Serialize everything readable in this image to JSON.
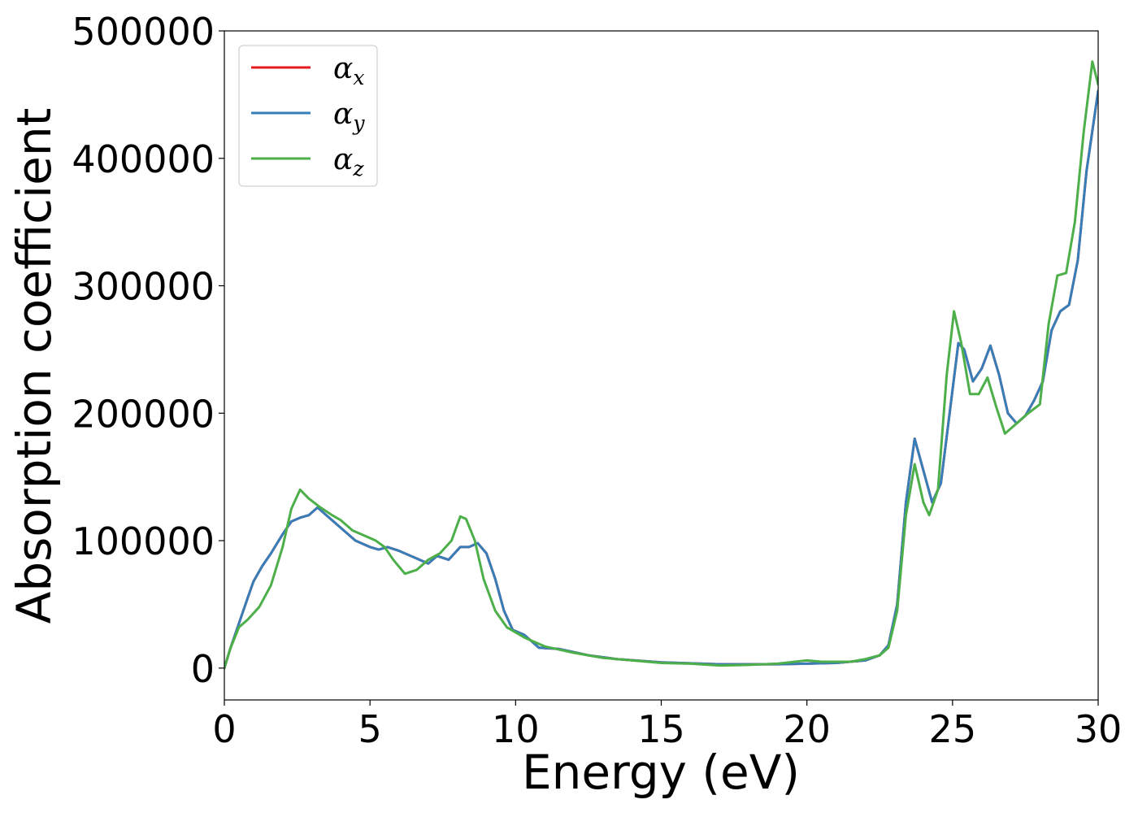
{
  "chart_data": {
    "type": "line",
    "title": "",
    "xlabel": "Energy (eV)",
    "ylabel": "Absorption coefficient",
    "xlim": [
      0,
      30
    ],
    "ylim": [
      -25000,
      500000
    ],
    "xticks": [
      0,
      5,
      10,
      15,
      20,
      25,
      30
    ],
    "xtick_labels": [
      "0",
      "5",
      "10",
      "15",
      "20",
      "25",
      "30"
    ],
    "yticks": [
      0,
      100000,
      200000,
      300000,
      400000,
      500000
    ],
    "ytick_labels": [
      "0",
      "100000",
      "200000",
      "300000",
      "400000",
      "500000"
    ],
    "grid": false,
    "legend_position": "top-left",
    "series": [
      {
        "name": "α_x",
        "legend_main": "α",
        "legend_sub": "x",
        "color": "#e41a1c",
        "points": [
          [
            0,
            0
          ],
          [
            0.2,
            15000
          ],
          [
            0.5,
            35000
          ],
          [
            0.8,
            55000
          ],
          [
            1.0,
            68000
          ],
          [
            1.3,
            80000
          ],
          [
            1.6,
            90000
          ],
          [
            2.0,
            105000
          ],
          [
            2.3,
            115000
          ],
          [
            2.6,
            118000
          ],
          [
            2.9,
            120000
          ],
          [
            3.2,
            126000
          ],
          [
            3.5,
            120000
          ],
          [
            4.0,
            110000
          ],
          [
            4.5,
            100000
          ],
          [
            5.0,
            95000
          ],
          [
            5.3,
            93000
          ],
          [
            5.6,
            95000
          ],
          [
            6.0,
            92000
          ],
          [
            6.5,
            87000
          ],
          [
            7.0,
            82000
          ],
          [
            7.3,
            88000
          ],
          [
            7.7,
            85000
          ],
          [
            8.1,
            95000
          ],
          [
            8.4,
            95000
          ],
          [
            8.7,
            98000
          ],
          [
            9.0,
            90000
          ],
          [
            9.3,
            70000
          ],
          [
            9.6,
            45000
          ],
          [
            9.9,
            30000
          ],
          [
            10.3,
            26000
          ],
          [
            10.8,
            16000
          ],
          [
            11.5,
            15000
          ],
          [
            12.5,
            10000
          ],
          [
            13.5,
            7000
          ],
          [
            15.0,
            4500
          ],
          [
            17.0,
            3000
          ],
          [
            19.0,
            3000
          ],
          [
            20.0,
            3500
          ],
          [
            21.0,
            4000
          ],
          [
            22.0,
            6000
          ],
          [
            22.5,
            10000
          ],
          [
            22.8,
            18000
          ],
          [
            23.1,
            50000
          ],
          [
            23.4,
            130000
          ],
          [
            23.7,
            180000
          ],
          [
            24.0,
            155000
          ],
          [
            24.3,
            130000
          ],
          [
            24.6,
            145000
          ],
          [
            24.9,
            200000
          ],
          [
            25.2,
            255000
          ],
          [
            25.4,
            250000
          ],
          [
            25.7,
            225000
          ],
          [
            26.0,
            235000
          ],
          [
            26.3,
            253000
          ],
          [
            26.6,
            230000
          ],
          [
            26.9,
            200000
          ],
          [
            27.2,
            192000
          ],
          [
            27.5,
            198000
          ],
          [
            27.8,
            210000
          ],
          [
            28.1,
            225000
          ],
          [
            28.4,
            265000
          ],
          [
            28.7,
            280000
          ],
          [
            29.0,
            285000
          ],
          [
            29.3,
            320000
          ],
          [
            29.6,
            390000
          ],
          [
            30.0,
            453000
          ]
        ]
      },
      {
        "name": "α_y",
        "legend_main": "α",
        "legend_sub": "y",
        "color": "#377eb8",
        "points": [
          [
            0,
            0
          ],
          [
            0.2,
            15000
          ],
          [
            0.5,
            35000
          ],
          [
            0.8,
            55000
          ],
          [
            1.0,
            68000
          ],
          [
            1.3,
            80000
          ],
          [
            1.6,
            90000
          ],
          [
            2.0,
            105000
          ],
          [
            2.3,
            115000
          ],
          [
            2.6,
            118000
          ],
          [
            2.9,
            120000
          ],
          [
            3.2,
            126000
          ],
          [
            3.5,
            120000
          ],
          [
            4.0,
            110000
          ],
          [
            4.5,
            100000
          ],
          [
            5.0,
            95000
          ],
          [
            5.3,
            93000
          ],
          [
            5.6,
            95000
          ],
          [
            6.0,
            92000
          ],
          [
            6.5,
            87000
          ],
          [
            7.0,
            82000
          ],
          [
            7.3,
            88000
          ],
          [
            7.7,
            85000
          ],
          [
            8.1,
            95000
          ],
          [
            8.4,
            95000
          ],
          [
            8.7,
            98000
          ],
          [
            9.0,
            90000
          ],
          [
            9.3,
            70000
          ],
          [
            9.6,
            45000
          ],
          [
            9.9,
            30000
          ],
          [
            10.3,
            26000
          ],
          [
            10.8,
            16000
          ],
          [
            11.5,
            15000
          ],
          [
            12.5,
            10000
          ],
          [
            13.5,
            7000
          ],
          [
            15.0,
            4500
          ],
          [
            17.0,
            3000
          ],
          [
            19.0,
            3000
          ],
          [
            20.0,
            3500
          ],
          [
            21.0,
            4000
          ],
          [
            22.0,
            6000
          ],
          [
            22.5,
            10000
          ],
          [
            22.8,
            18000
          ],
          [
            23.1,
            50000
          ],
          [
            23.4,
            130000
          ],
          [
            23.7,
            180000
          ],
          [
            24.0,
            155000
          ],
          [
            24.3,
            130000
          ],
          [
            24.6,
            145000
          ],
          [
            24.9,
            200000
          ],
          [
            25.2,
            255000
          ],
          [
            25.4,
            250000
          ],
          [
            25.7,
            225000
          ],
          [
            26.0,
            235000
          ],
          [
            26.3,
            253000
          ],
          [
            26.6,
            230000
          ],
          [
            26.9,
            200000
          ],
          [
            27.2,
            192000
          ],
          [
            27.5,
            198000
          ],
          [
            27.8,
            210000
          ],
          [
            28.1,
            225000
          ],
          [
            28.4,
            265000
          ],
          [
            28.7,
            280000
          ],
          [
            29.0,
            285000
          ],
          [
            29.3,
            320000
          ],
          [
            29.6,
            390000
          ],
          [
            30.0,
            453000
          ]
        ]
      },
      {
        "name": "α_z",
        "legend_main": "α",
        "legend_sub": "z",
        "color": "#4daf4a",
        "points": [
          [
            0,
            0
          ],
          [
            0.2,
            15000
          ],
          [
            0.5,
            32000
          ],
          [
            0.8,
            38000
          ],
          [
            1.2,
            48000
          ],
          [
            1.6,
            65000
          ],
          [
            2.0,
            95000
          ],
          [
            2.3,
            125000
          ],
          [
            2.6,
            140000
          ],
          [
            2.9,
            133000
          ],
          [
            3.3,
            126000
          ],
          [
            3.7,
            120000
          ],
          [
            4.0,
            116000
          ],
          [
            4.4,
            108000
          ],
          [
            4.8,
            104000
          ],
          [
            5.2,
            100000
          ],
          [
            5.5,
            95000
          ],
          [
            5.8,
            85000
          ],
          [
            6.2,
            74000
          ],
          [
            6.6,
            77000
          ],
          [
            7.0,
            85000
          ],
          [
            7.4,
            90000
          ],
          [
            7.8,
            100000
          ],
          [
            8.1,
            119000
          ],
          [
            8.3,
            117000
          ],
          [
            8.6,
            100000
          ],
          [
            8.9,
            70000
          ],
          [
            9.3,
            45000
          ],
          [
            9.7,
            32000
          ],
          [
            10.3,
            24000
          ],
          [
            11.0,
            17000
          ],
          [
            12.0,
            12000
          ],
          [
            13.0,
            8000
          ],
          [
            14.0,
            6000
          ],
          [
            15.0,
            4000
          ],
          [
            16.0,
            3500
          ],
          [
            17.0,
            2000
          ],
          [
            18.0,
            2500
          ],
          [
            19.0,
            3500
          ],
          [
            20.0,
            6000
          ],
          [
            20.5,
            5000
          ],
          [
            21.5,
            5000
          ],
          [
            22.0,
            7000
          ],
          [
            22.5,
            10000
          ],
          [
            22.8,
            16000
          ],
          [
            23.1,
            45000
          ],
          [
            23.4,
            120000
          ],
          [
            23.7,
            160000
          ],
          [
            24.0,
            130000
          ],
          [
            24.2,
            120000
          ],
          [
            24.5,
            140000
          ],
          [
            24.8,
            230000
          ],
          [
            25.05,
            280000
          ],
          [
            25.3,
            255000
          ],
          [
            25.6,
            215000
          ],
          [
            25.9,
            215000
          ],
          [
            26.2,
            228000
          ],
          [
            26.5,
            205000
          ],
          [
            26.8,
            184000
          ],
          [
            27.2,
            192000
          ],
          [
            27.6,
            200000
          ],
          [
            28.0,
            207000
          ],
          [
            28.3,
            270000
          ],
          [
            28.6,
            308000
          ],
          [
            28.9,
            310000
          ],
          [
            29.2,
            350000
          ],
          [
            29.5,
            420000
          ],
          [
            29.8,
            476000
          ],
          [
            30.0,
            458000
          ]
        ]
      }
    ]
  }
}
